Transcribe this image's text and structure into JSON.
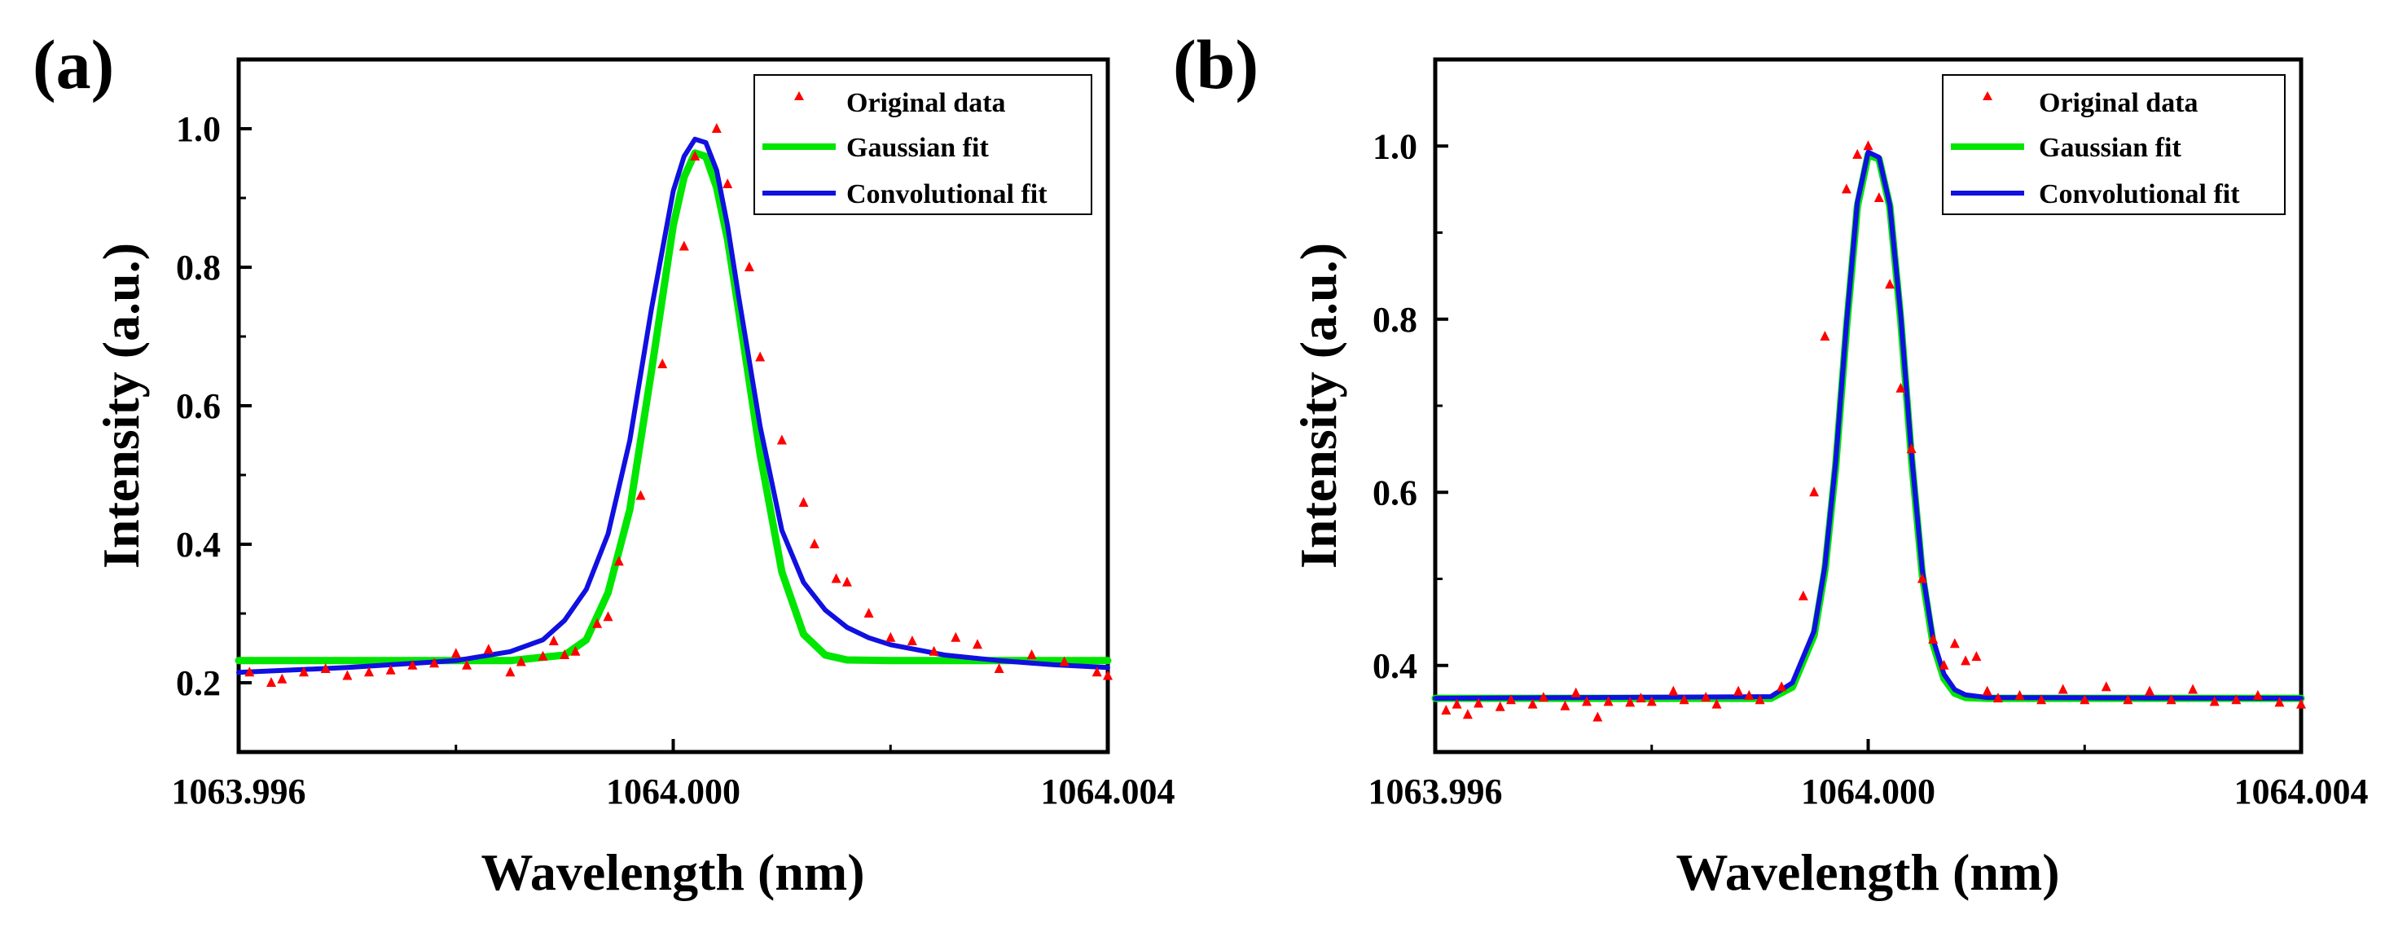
{
  "chart_data": [
    {
      "type": "line",
      "panel_label": "(a)",
      "xlabel": "Wavelength (nm)",
      "ylabel": "Intensity (a.u.)",
      "xlim": [
        1063.996,
        1064.004
      ],
      "ylim": [
        0.1,
        1.1
      ],
      "xticks": [
        1063.996,
        1064.0,
        1064.004
      ],
      "xtick_labels": [
        "1063.996",
        "1064.000",
        "1064.004"
      ],
      "yticks": [
        0.2,
        0.4,
        0.6,
        0.8,
        1.0
      ],
      "ytick_labels": [
        "0.2",
        "0.4",
        "0.6",
        "0.8",
        "1.0"
      ],
      "legend": {
        "placement": "top-right",
        "entries": [
          "Original data",
          "Gaussian fit",
          "Convolutional fit"
        ]
      },
      "series": [
        {
          "name": "Original data",
          "kind": "scatter",
          "marker": "triangle",
          "color": "#ff0000",
          "x": [
            1063.9961,
            1063.9963,
            1063.9964,
            1063.9966,
            1063.9968,
            1063.997,
            1063.9972,
            1063.9974,
            1063.9976,
            1063.9978,
            1063.998,
            1063.9981,
            1063.9983,
            1063.9985,
            1063.9986,
            1063.9988,
            1063.9989,
            1063.999,
            1063.9991,
            1063.9993,
            1063.9994,
            1063.9995,
            1063.9997,
            1063.9999,
            1064.0001,
            1064.0002,
            1064.0004,
            1064.0005,
            1064.0007,
            1064.0008,
            1064.001,
            1064.0012,
            1064.0013,
            1064.0015,
            1064.0016,
            1064.0018,
            1064.002,
            1064.0022,
            1064.0024,
            1064.0026,
            1064.0028,
            1064.003,
            1064.0033,
            1064.0036,
            1064.0039,
            1064.004
          ],
          "y": [
            0.215,
            0.2,
            0.205,
            0.215,
            0.22,
            0.21,
            0.215,
            0.218,
            0.225,
            0.228,
            0.242,
            0.225,
            0.248,
            0.215,
            0.23,
            0.238,
            0.26,
            0.24,
            0.245,
            0.285,
            0.295,
            0.375,
            0.47,
            0.66,
            0.83,
            0.96,
            1.0,
            0.92,
            0.8,
            0.67,
            0.55,
            0.46,
            0.4,
            0.35,
            0.345,
            0.3,
            0.265,
            0.26,
            0.245,
            0.265,
            0.255,
            0.22,
            0.24,
            0.23,
            0.215,
            0.21
          ]
        },
        {
          "name": "Gaussian fit",
          "kind": "line",
          "color": "#00e600",
          "x": [
            1063.996,
            1063.9985,
            1063.999,
            1063.9992,
            1063.9994,
            1063.9996,
            1063.9998,
            1064.0,
            1064.0001,
            1064.0002,
            1064.0003,
            1064.0004,
            1064.0005,
            1064.0006,
            1064.0008,
            1064.001,
            1064.0012,
            1064.0014,
            1064.0016,
            1064.002,
            1064.004
          ],
          "y": [
            0.232,
            0.232,
            0.24,
            0.262,
            0.33,
            0.45,
            0.65,
            0.86,
            0.93,
            0.965,
            0.96,
            0.915,
            0.84,
            0.74,
            0.53,
            0.36,
            0.27,
            0.24,
            0.233,
            0.232,
            0.232
          ]
        },
        {
          "name": "Convolutional fit",
          "kind": "line",
          "color": "#1010e0",
          "x": [
            1063.996,
            1063.997,
            1063.998,
            1063.9985,
            1063.9988,
            1063.999,
            1063.9992,
            1063.9994,
            1063.9996,
            1063.9998,
            1064.0,
            1064.0001,
            1064.0002,
            1064.0003,
            1064.0004,
            1064.0005,
            1064.0006,
            1064.0008,
            1064.001,
            1064.0012,
            1064.0014,
            1064.0016,
            1064.0018,
            1064.002,
            1064.0025,
            1064.003,
            1064.0035,
            1064.004
          ],
          "y": [
            0.215,
            0.222,
            0.232,
            0.245,
            0.262,
            0.29,
            0.335,
            0.415,
            0.55,
            0.74,
            0.91,
            0.96,
            0.985,
            0.98,
            0.94,
            0.86,
            0.76,
            0.57,
            0.42,
            0.345,
            0.305,
            0.28,
            0.265,
            0.255,
            0.24,
            0.232,
            0.226,
            0.222
          ]
        }
      ]
    },
    {
      "type": "line",
      "panel_label": "(b)",
      "xlabel": "Wavelength (nm)",
      "ylabel": "Intensity (a.u.)",
      "xlim": [
        1063.996,
        1064.004
      ],
      "ylim": [
        0.3,
        1.1
      ],
      "xticks": [
        1063.996,
        1064.0,
        1064.004
      ],
      "xtick_labels": [
        "1063.996",
        "1064.000",
        "1064.004"
      ],
      "yticks": [
        0.4,
        0.6,
        0.8,
        1.0
      ],
      "ytick_labels": [
        "0.4",
        "0.6",
        "0.8",
        "1.0"
      ],
      "legend": {
        "placement": "top-right",
        "entries": [
          "Original data",
          "Gaussian fit",
          "Convolutional fit"
        ]
      },
      "series": [
        {
          "name": "Original data",
          "kind": "scatter",
          "marker": "triangle",
          "color": "#ff0000",
          "x": [
            1063.9961,
            1063.9962,
            1063.9963,
            1063.9964,
            1063.9966,
            1063.9967,
            1063.9969,
            1063.997,
            1063.9972,
            1063.9973,
            1063.9974,
            1063.9975,
            1063.9976,
            1063.9978,
            1063.9979,
            1063.998,
            1063.9982,
            1063.9983,
            1063.9985,
            1063.9986,
            1063.9988,
            1063.9989,
            1063.999,
            1063.9992,
            1063.9994,
            1063.9995,
            1063.9996,
            1063.9998,
            1063.9999,
            1064.0,
            1064.0001,
            1064.0002,
            1064.0003,
            1064.0004,
            1064.0005,
            1064.0006,
            1064.0007,
            1064.0008,
            1064.0009,
            1064.001,
            1064.0011,
            1064.0012,
            1064.0014,
            1064.0016,
            1064.0018,
            1064.002,
            1064.0022,
            1064.0024,
            1064.0026,
            1064.0028,
            1064.003,
            1064.0032,
            1064.0034,
            1064.0036,
            1064.0038,
            1064.004
          ],
          "y": [
            0.348,
            0.355,
            0.343,
            0.356,
            0.352,
            0.36,
            0.355,
            0.363,
            0.353,
            0.368,
            0.358,
            0.34,
            0.358,
            0.357,
            0.362,
            0.358,
            0.37,
            0.36,
            0.363,
            0.355,
            0.37,
            0.365,
            0.36,
            0.375,
            0.48,
            0.6,
            0.78,
            0.95,
            0.99,
            1.0,
            0.94,
            0.84,
            0.72,
            0.65,
            0.5,
            0.43,
            0.4,
            0.425,
            0.405,
            0.41,
            0.37,
            0.362,
            0.365,
            0.36,
            0.372,
            0.36,
            0.375,
            0.36,
            0.37,
            0.36,
            0.372,
            0.358,
            0.36,
            0.365,
            0.357,
            0.355
          ]
        },
        {
          "name": "Gaussian fit",
          "kind": "line",
          "color": "#00e600",
          "x": [
            1063.996,
            1063.9991,
            1063.9993,
            1063.9995,
            1063.9996,
            1063.9997,
            1063.9998,
            1063.9999,
            1064.0,
            1064.0001,
            1064.0002,
            1064.0003,
            1064.0004,
            1064.0005,
            1064.0006,
            1064.0007,
            1064.0008,
            1064.0009,
            1064.0011,
            1064.004
          ],
          "y": [
            0.362,
            0.362,
            0.375,
            0.435,
            0.51,
            0.63,
            0.79,
            0.93,
            0.99,
            0.985,
            0.93,
            0.8,
            0.64,
            0.505,
            0.425,
            0.385,
            0.368,
            0.363,
            0.362,
            0.362
          ]
        },
        {
          "name": "Convolutional fit",
          "kind": "line",
          "color": "#1010e0",
          "x": [
            1063.996,
            1063.9991,
            1063.9993,
            1063.9995,
            1063.9996,
            1063.9997,
            1063.9998,
            1063.9999,
            1064.0,
            1064.0001,
            1064.0002,
            1064.0003,
            1064.0004,
            1064.0005,
            1064.0006,
            1064.0007,
            1064.0008,
            1064.0009,
            1064.0011,
            1064.004
          ],
          "y": [
            0.362,
            0.364,
            0.38,
            0.44,
            0.515,
            0.635,
            0.795,
            0.935,
            0.993,
            0.987,
            0.932,
            0.805,
            0.645,
            0.51,
            0.43,
            0.39,
            0.372,
            0.366,
            0.363,
            0.362
          ]
        }
      ]
    }
  ]
}
